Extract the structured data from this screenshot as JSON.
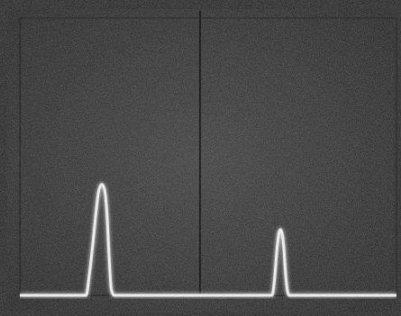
{
  "chart_data": {
    "type": "line",
    "x": [
      0,
      17.6,
      18.5,
      19.5,
      20.4,
      21.0,
      21.8,
      22.5,
      23.1,
      23.7,
      24.3,
      25.0,
      67.0,
      67.7,
      68.3,
      68.8,
      69.2,
      69.6,
      70.1,
      70.6,
      71.4,
      100
    ],
    "values": [
      0,
      0,
      8,
      20,
      32,
      38,
      40,
      38,
      30,
      14,
      2,
      0,
      0,
      7,
      17,
      22.5,
      23.7,
      22.5,
      17,
      7,
      0,
      0
    ],
    "color": "#ececec",
    "xlim": [
      0,
      100
    ],
    "ylim": [
      0,
      100
    ],
    "tick_labels": false
  }
}
